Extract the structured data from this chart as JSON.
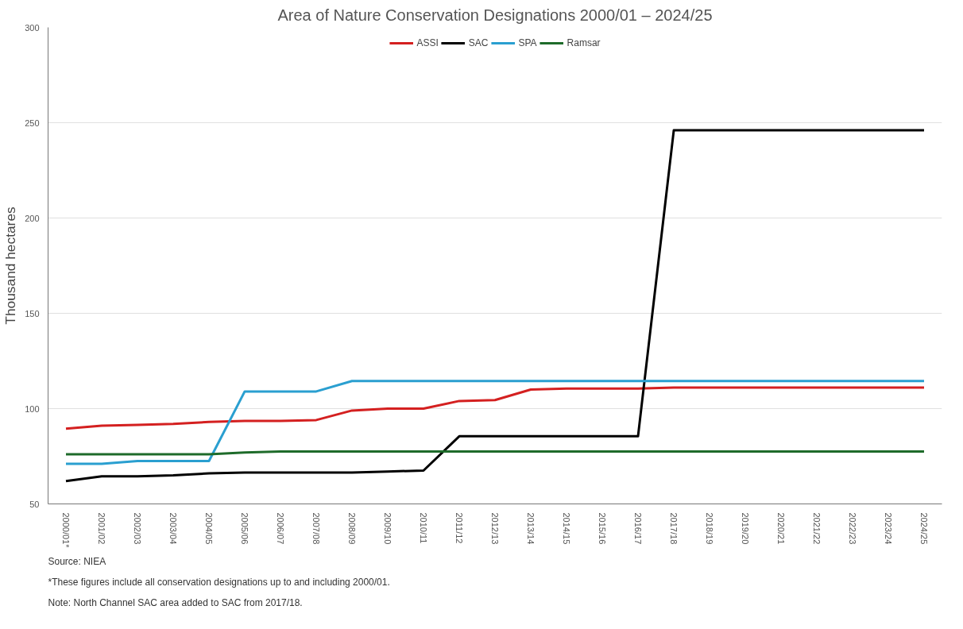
{
  "chart_data": {
    "type": "line",
    "title": "Area of Nature Conservation Designations 2000/01 – 2024/25",
    "ylabel": "Thousand hectares",
    "categories": [
      "2000/01*",
      "2001/02",
      "2002/03",
      "2003/04",
      "2004/05",
      "2005/06",
      "2006/07",
      "2007/08",
      "2008/09",
      "2009/10",
      "2010/11",
      "2011/12",
      "2012/13",
      "2013/14",
      "2014/15",
      "2015/16",
      "2016/17",
      "2017/18",
      "2018/19",
      "2019/20",
      "2020/21",
      "2021/22",
      "2022/23",
      "2023/24",
      "2024/25"
    ],
    "series": [
      {
        "name": "ASSI",
        "color": "#d42020",
        "values": [
          89.5,
          91,
          91.5,
          92,
          93,
          93.5,
          93.5,
          94,
          99,
          100,
          100,
          104,
          104.5,
          110,
          110.5,
          110.5,
          110.5,
          111,
          111,
          111,
          111,
          111,
          111,
          111,
          111
        ]
      },
      {
        "name": "SAC",
        "color": "#000000",
        "values": [
          62,
          64.5,
          64.5,
          65,
          66,
          66.5,
          66.5,
          66.5,
          66.5,
          67,
          67.5,
          85.5,
          85.5,
          85.5,
          85.5,
          85.5,
          85.5,
          246,
          246,
          246,
          246,
          246,
          246,
          246,
          246
        ]
      },
      {
        "name": "SPA",
        "color": "#2a9fd0",
        "values": [
          71,
          71,
          72.5,
          72.5,
          72.5,
          109,
          109,
          109,
          114.5,
          114.5,
          114.5,
          114.5,
          114.5,
          114.5,
          114.5,
          114.5,
          114.5,
          114.5,
          114.5,
          114.5,
          114.5,
          114.5,
          114.5,
          114.5,
          114.5
        ]
      },
      {
        "name": "Ramsar",
        "color": "#1e6b2a",
        "values": [
          76,
          76,
          76,
          76,
          76,
          77,
          77.5,
          77.5,
          77.5,
          77.5,
          77.5,
          77.5,
          77.5,
          77.5,
          77.5,
          77.5,
          77.5,
          77.5,
          77.5,
          77.5,
          77.5,
          77.5,
          77.5,
          77.5,
          77.5
        ]
      }
    ],
    "ylim": [
      50,
      300
    ],
    "yticks": [
      50,
      100,
      150,
      200,
      250,
      300
    ],
    "grid": "y",
    "legend": "top",
    "marker": "none",
    "line_style": "solid",
    "annotations": [
      "Source: NIEA",
      "*These figures include all conservation designations up to and including 2000/01.",
      "Note: North Channel SAC area added to SAC from 2017/18."
    ]
  }
}
